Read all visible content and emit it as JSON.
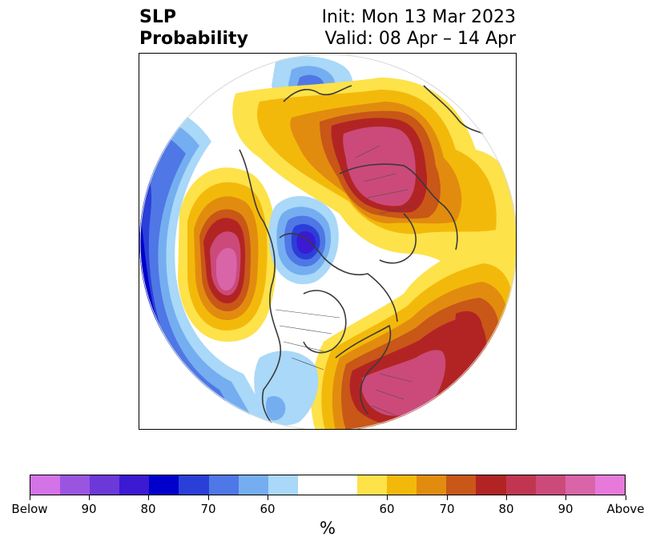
{
  "header": {
    "title_line1": "SLP",
    "title_line2": "Probability",
    "init": "Init: Mon 13 Mar 2023",
    "valid": "Valid: 08 Apr – 14 Apr"
  },
  "colorbar": {
    "colors": [
      "#d473e8",
      "#9a55e0",
      "#6c38d8",
      "#3c19d2",
      "#0000cc",
      "#2a3fd8",
      "#4f77e5",
      "#74aef0",
      "#a9d8f8",
      "#ffffff",
      "#ffffff",
      "#fde24a",
      "#f3b90a",
      "#e28c0f",
      "#c85718",
      "#b22424",
      "#c03650",
      "#cb4a7a",
      "#d964a8",
      "#e779da"
    ],
    "tick_labels": [
      "Below",
      "90",
      "80",
      "70",
      "60",
      "60",
      "70",
      "80",
      "90",
      "Above"
    ],
    "unit": "%"
  },
  "map": {
    "projection": "north-polar-stereographic",
    "palette": {
      "above_pink": "#d964a8",
      "above_magenta": "#cb4a7a",
      "above_red": "#b22424",
      "above_darkorange": "#c85718",
      "above_orange": "#e28c0f",
      "above_gold": "#f3b90a",
      "above_yellow": "#fde24a",
      "below_lightblue": "#a9d8f8",
      "below_blue": "#74aef0",
      "below_mid": "#4f77e5",
      "below_deep": "#2a3fd8",
      "below_navy": "#0000cc",
      "below_violet": "#3c19d2",
      "coastline": "#3a3a3a"
    }
  }
}
